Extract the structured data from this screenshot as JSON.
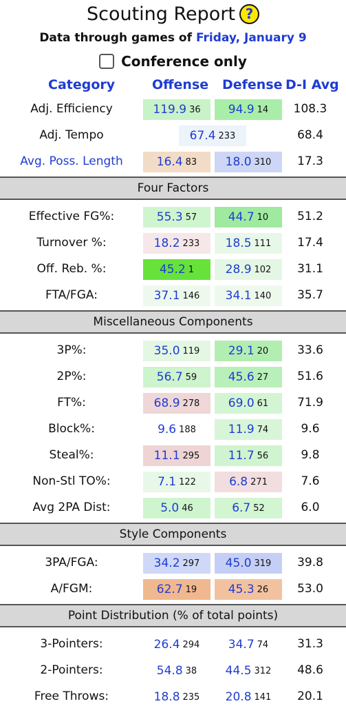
{
  "header": {
    "title": "Scouting Report",
    "subtitle_prefix": "Data through games of",
    "subtitle_date": "Friday, January 9",
    "conference_only_label": "Conference only"
  },
  "columns": {
    "category": "Category",
    "offense": "Offense",
    "defense": "Defense",
    "d1_avg": "D-I Avg"
  },
  "top_rows": [
    {
      "label": "Adj. Efficiency",
      "link": false,
      "off_val": "119.9",
      "off_rank": "36",
      "off_color": "#c8f2c8",
      "def_val": "94.9",
      "def_rank": "14",
      "def_color": "#a8eea8",
      "avg": "108.3"
    },
    {
      "label": "Avg. Poss. Length",
      "link": true,
      "off_val": "16.4",
      "off_rank": "83",
      "off_color": "#f2dcc8",
      "def_val": "18.0",
      "def_rank": "310",
      "def_color": "#cdd6f5",
      "avg": "17.3"
    }
  ],
  "tempo_row": {
    "label": "Adj. Tempo",
    "val": "67.4",
    "rank": "233",
    "color": "#ecf3fb",
    "avg": "68.4"
  },
  "sections": [
    {
      "title": "Four Factors",
      "rows": [
        {
          "label": "Effective FG%:",
          "off_val": "55.3",
          "off_rank": "57",
          "off_color": "#cff5cf",
          "def_val": "44.7",
          "def_rank": "10",
          "def_color": "#9fea9f",
          "avg": "51.2"
        },
        {
          "label": "Turnover %:",
          "off_val": "18.2",
          "off_rank": "233",
          "off_color": "#f6e8e8",
          "def_val": "18.5",
          "def_rank": "111",
          "def_color": "#e8f8e8",
          "avg": "17.4"
        },
        {
          "label": "Off. Reb. %:",
          "off_val": "45.2",
          "off_rank": "1",
          "off_color": "#66e23a",
          "def_val": "28.9",
          "def_rank": "102",
          "def_color": "#e4f7e4",
          "avg": "31.1"
        },
        {
          "label": "FTA/FGA:",
          "off_val": "37.1",
          "off_rank": "146",
          "off_color": "#eef9ee",
          "def_val": "34.1",
          "def_rank": "140",
          "def_color": "#eef9ee",
          "avg": "35.7"
        }
      ]
    },
    {
      "title": "Miscellaneous Components",
      "rows": [
        {
          "label": "3P%:",
          "off_val": "35.0",
          "off_rank": "119",
          "off_color": "#e3f7e3",
          "def_val": "29.1",
          "def_rank": "20",
          "def_color": "#b2eeb2",
          "avg": "33.6"
        },
        {
          "label": "2P%:",
          "off_val": "56.7",
          "off_rank": "59",
          "off_color": "#cdf4cd",
          "def_val": "45.6",
          "def_rank": "27",
          "def_color": "#b9efb9",
          "avg": "51.6"
        },
        {
          "label": "FT%:",
          "off_val": "68.9",
          "off_rank": "278",
          "off_color": "#efd7d7",
          "def_val": "69.0",
          "def_rank": "61",
          "def_color": "#d3f5d3",
          "avg": "71.9"
        },
        {
          "label": "Block%:",
          "off_val": "9.6",
          "off_rank": "188",
          "off_color": "#ffffff",
          "def_val": "11.9",
          "def_rank": "74",
          "def_color": "#d8f5d8",
          "avg": "9.6"
        },
        {
          "label": "Steal%:",
          "off_val": "11.1",
          "off_rank": "295",
          "off_color": "#eed4d4",
          "def_val": "11.7",
          "def_rank": "56",
          "def_color": "#cff4cf",
          "avg": "9.8"
        },
        {
          "label": "Non-Stl TO%:",
          "off_val": "7.1",
          "off_rank": "122",
          "off_color": "#e8f8e8",
          "def_val": "6.8",
          "def_rank": "271",
          "def_color": "#f2dede",
          "avg": "7.6"
        },
        {
          "label": "Avg 2PA Dist:",
          "off_val": "5.0",
          "off_rank": "46",
          "off_color": "#cff5cf",
          "def_val": "6.7",
          "def_rank": "52",
          "def_color": "#d2f5d2",
          "avg": "6.0"
        }
      ]
    },
    {
      "title": "Style Components",
      "rows": [
        {
          "label": "3PA/FGA:",
          "off_val": "34.2",
          "off_rank": "297",
          "off_color": "#cfd8f6",
          "def_val": "45.0",
          "def_rank": "319",
          "def_color": "#c5cff5",
          "avg": "39.8"
        },
        {
          "label": "A/FGM:",
          "off_val": "62.7",
          "off_rank": "19",
          "off_color": "#f0b88f",
          "def_val": "45.3",
          "def_rank": "26",
          "def_color": "#f2c29f",
          "avg": "53.0"
        }
      ]
    },
    {
      "title": "Point Distribution (% of total points)",
      "rows": [
        {
          "label": "3-Pointers:",
          "off_val": "26.4",
          "off_rank": "294",
          "off_color": "#ffffff",
          "def_val": "34.7",
          "def_rank": "74",
          "def_color": "#ffffff",
          "avg": "31.3"
        },
        {
          "label": "2-Pointers:",
          "off_val": "54.8",
          "off_rank": "38",
          "off_color": "#ffffff",
          "def_val": "44.5",
          "def_rank": "312",
          "def_color": "#ffffff",
          "avg": "48.6"
        },
        {
          "label": "Free Throws:",
          "off_val": "18.8",
          "off_rank": "235",
          "off_color": "#ffffff",
          "def_val": "20.8",
          "def_rank": "141",
          "def_color": "#ffffff",
          "avg": "20.1"
        }
      ]
    }
  ]
}
